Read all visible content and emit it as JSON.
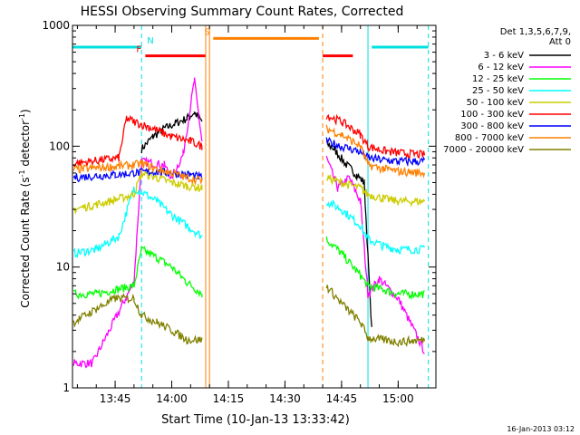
{
  "chart_data": {
    "type": "line",
    "title": "HESSI Observing Summary Count Rates, Corrected",
    "xlabel": "Start Time (10-Jan-13 13:33:42)",
    "ylabel": "Corrected Count Rate (s⁻¹ detector⁻¹)",
    "ylabel_main": "Corrected Count Rate (s",
    "ylabel_sup1": "-1",
    "ylabel_mid": " detector",
    "ylabel_sup2": "-1",
    "ylabel_end": ")",
    "yscale": "log",
    "xlim": [
      "13:33:42",
      "15:10:00"
    ],
    "ylim": [
      1,
      1000
    ],
    "x_ticks": [
      "13:45",
      "14:00",
      "14:15",
      "14:30",
      "14:45",
      "15:00"
    ],
    "y_ticks": [
      "1",
      "10",
      "100",
      "1000"
    ],
    "legend_position": "right",
    "legend_header": [
      "Det 1,3,5,6,7,9,",
      "Att 0"
    ],
    "timestamp": "16-Jan-2013 03:12",
    "series": [
      {
        "name": "3 - 6 keV",
        "color": "#000000",
        "x": [
          "13:52",
          "13:55",
          "13:58",
          "14:01",
          "14:04",
          "14:06",
          "14:08",
          "14:41",
          "14:43",
          "14:46",
          "14:49",
          "14:51",
          "14:53"
        ],
        "y": [
          95,
          120,
          140,
          155,
          170,
          190,
          160,
          105,
          95,
          72,
          58,
          50,
          3
        ]
      },
      {
        "name": "6 - 12 keV",
        "color": "#ff00ff",
        "x": [
          "13:34",
          "13:39",
          "13:50",
          "13:52",
          "13:58",
          "14:00",
          "14:03",
          "14:06",
          "14:08",
          "14:41",
          "14:44",
          "14:47",
          "14:50",
          "14:52",
          "14:55",
          "15:00",
          "15:07"
        ],
        "y": [
          1.6,
          1.6,
          7.5,
          75,
          70,
          55,
          85,
          350,
          110,
          80,
          45,
          55,
          35,
          6,
          8,
          5.5,
          2
        ]
      },
      {
        "name": "12 - 25 keV",
        "color": "#00ff00",
        "x": [
          "13:34",
          "13:40",
          "13:45",
          "13:50",
          "13:52",
          "13:56",
          "14:00",
          "14:04",
          "14:08",
          "14:41",
          "14:45",
          "14:50",
          "14:52",
          "14:56",
          "15:00",
          "15:07"
        ],
        "y": [
          6,
          6,
          6.5,
          7,
          14,
          12,
          10,
          7.5,
          6,
          17,
          13,
          8.5,
          7,
          6.5,
          6,
          6
        ]
      },
      {
        "name": "25 - 50 keV",
        "color": "#00ffff",
        "x": [
          "13:34",
          "13:40",
          "13:46",
          "13:50",
          "13:52",
          "13:56",
          "14:00",
          "14:04",
          "14:08",
          "14:41",
          "14:45",
          "14:50",
          "14:52",
          "14:56",
          "15:00",
          "15:07"
        ],
        "y": [
          13,
          14,
          18,
          45,
          42,
          35,
          27,
          22,
          18,
          35,
          30,
          22,
          17,
          15,
          14,
          14
        ]
      },
      {
        "name": "50 - 100 keV",
        "color": "#cccc00",
        "x": [
          "13:34",
          "13:40",
          "13:45",
          "13:50",
          "13:52",
          "13:56",
          "14:00",
          "14:04",
          "14:08",
          "14:41",
          "14:45",
          "14:50",
          "14:52",
          "14:56",
          "15:00",
          "15:07"
        ],
        "y": [
          30,
          33,
          36,
          40,
          60,
          55,
          50,
          47,
          45,
          55,
          50,
          45,
          40,
          37,
          35,
          35
        ]
      },
      {
        "name": "100 - 300 keV",
        "color": "#ff0000",
        "x": [
          "13:34",
          "13:40",
          "13:46",
          "13:48",
          "13:50",
          "13:55",
          "14:00",
          "14:05",
          "14:08",
          "14:41",
          "14:45",
          "14:50",
          "14:52",
          "14:56",
          "15:00",
          "15:07"
        ],
        "y": [
          72,
          76,
          80,
          170,
          160,
          140,
          120,
          110,
          100,
          180,
          160,
          125,
          100,
          92,
          88,
          85
        ]
      },
      {
        "name": "300 - 800 keV",
        "color": "#0000ff",
        "x": [
          "13:34",
          "13:40",
          "13:45",
          "13:50",
          "13:55",
          "14:00",
          "14:05",
          "14:08",
          "14:41",
          "14:45",
          "14:50",
          "14:52",
          "14:56",
          "15:00",
          "15:07"
        ],
        "y": [
          55,
          57,
          58,
          60,
          62,
          60,
          58,
          55,
          110,
          100,
          90,
          80,
          77,
          75,
          75
        ]
      },
      {
        "name": "800 - 7000 keV",
        "color": "#ff8000",
        "x": [
          "13:34",
          "13:40",
          "13:45",
          "13:50",
          "13:52",
          "13:56",
          "14:00",
          "14:04",
          "14:08",
          "14:41",
          "14:45",
          "14:50",
          "14:52",
          "14:56",
          "15:00",
          "15:07"
        ],
        "y": [
          64,
          66,
          68,
          70,
          72,
          65,
          60,
          55,
          52,
          140,
          125,
          100,
          70,
          65,
          62,
          60
        ]
      },
      {
        "name": "7000 - 20000 keV",
        "color": "#808000",
        "x": [
          "13:34",
          "13:40",
          "13:45",
          "13:50",
          "13:52",
          "13:56",
          "14:00",
          "14:04",
          "14:08",
          "14:41",
          "14:45",
          "14:50",
          "14:52",
          "14:56",
          "15:00",
          "15:07"
        ],
        "y": [
          3.5,
          4.5,
          5.5,
          5.5,
          4,
          3.5,
          3,
          2.5,
          2.5,
          7,
          5,
          3.5,
          2.6,
          2.5,
          2.4,
          2.5
        ]
      }
    ],
    "flag_bars": [
      {
        "label": "N",
        "color": "#00e0e0",
        "level": 660,
        "segments": [
          [
            "13:33:42",
            "13:52"
          ],
          [
            "14:53",
            "15:08"
          ]
        ]
      },
      {
        "label": "F",
        "color": "#ff0000",
        "level": 560,
        "segments": [
          [
            "13:53",
            "14:09"
          ],
          [
            "14:40",
            "14:48"
          ]
        ]
      },
      {
        "label": "S",
        "color": "#ff8000",
        "level": 780,
        "segments": [
          [
            "14:11",
            "14:39"
          ]
        ]
      }
    ],
    "vertical_markers": [
      {
        "color": "#00e0e0",
        "style": "dashed",
        "x": "13:52"
      },
      {
        "color": "#00e0e0",
        "style": "dashed",
        "x": "15:08"
      },
      {
        "color": "#00e0e0",
        "style": "solid",
        "x": "14:52"
      },
      {
        "color": "#ff8000",
        "style": "solid",
        "x": "14:09"
      },
      {
        "color": "#ff8000",
        "style": "solid",
        "x": "14:10"
      },
      {
        "color": "#ff8000",
        "style": "dashed",
        "x": "14:40"
      }
    ]
  }
}
